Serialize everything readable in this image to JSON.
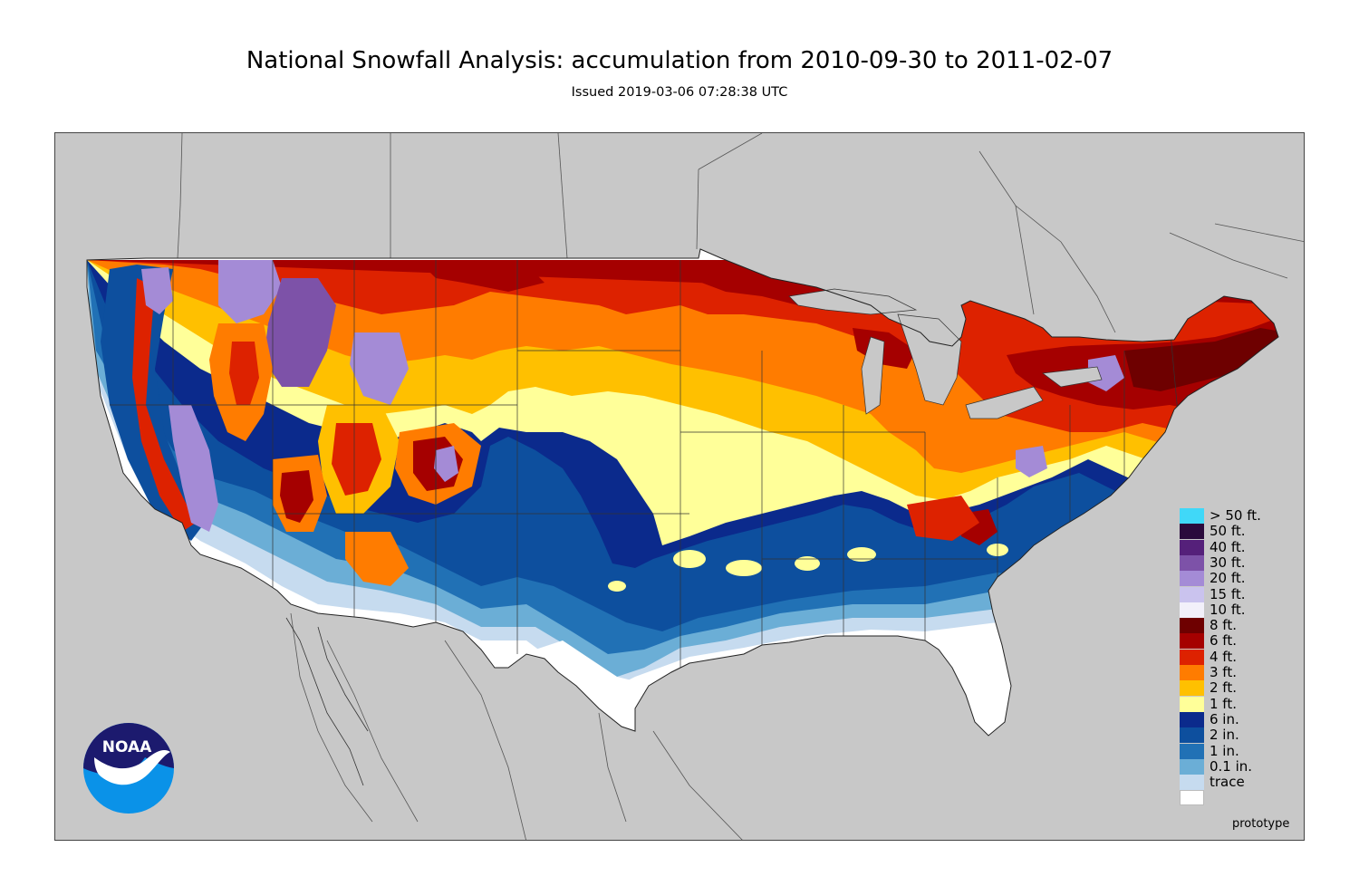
{
  "title": "National Snowfall Analysis: accumulation from 2010-09-30 to 2011-02-07",
  "subtitle": "Issued 2019-03-06 07:28:38 UTC",
  "footer_note": "prototype",
  "logo_text": "NOAA",
  "legend": {
    "items": [
      {
        "label": "> 50 ft.",
        "color": "#40d8f8"
      },
      {
        "label": "50 ft.",
        "color": "#2a0a3c"
      },
      {
        "label": "40 ft.",
        "color": "#55207a"
      },
      {
        "label": "30 ft.",
        "color": "#7d52a8"
      },
      {
        "label": "20 ft.",
        "color": "#a48bd6"
      },
      {
        "label": "15 ft.",
        "color": "#cac3ee"
      },
      {
        "label": "10 ft.",
        "color": "#f2f0fa"
      },
      {
        "label": "8 ft.",
        "color": "#6e0000"
      },
      {
        "label": "6 ft.",
        "color": "#a50000"
      },
      {
        "label": "4 ft.",
        "color": "#dd2200"
      },
      {
        "label": "3 ft.",
        "color": "#ff7c00"
      },
      {
        "label": "2 ft.",
        "color": "#ffc000"
      },
      {
        "label": "1 ft.",
        "color": "#ffff99"
      },
      {
        "label": "6 in.",
        "color": "#0b2a8c"
      },
      {
        "label": "2 in.",
        "color": "#0d4f9e"
      },
      {
        "label": "1 in.",
        "color": "#2171b5"
      },
      {
        "label": "0.1 in.",
        "color": "#6baed6"
      },
      {
        "label": "trace",
        "color": "#c6dbef"
      },
      {
        "label": "",
        "color": "#ffffff"
      }
    ]
  },
  "colors": {
    "background_land": "#c8c8c8",
    "no_snow": "#ffffff",
    "boundary": "#333333"
  }
}
